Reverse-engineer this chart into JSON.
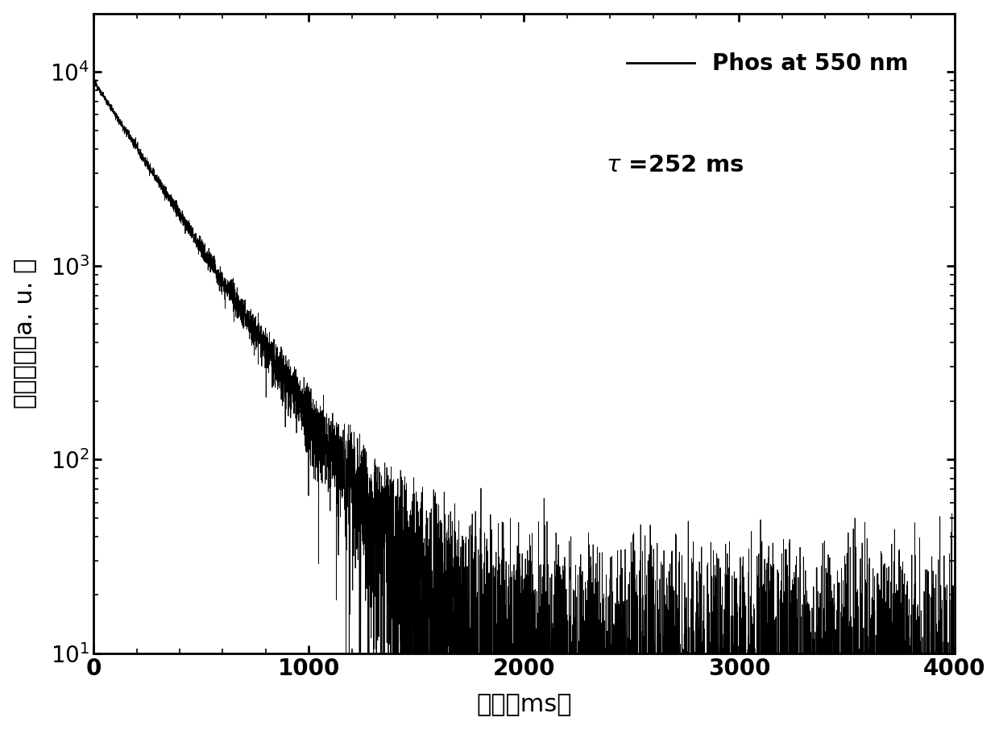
{
  "title": "",
  "xlabel": "时间（ms）",
  "ylabel": "磷光强度（a. u. ）",
  "xmin": 0,
  "xmax": 4000,
  "ymin": 10,
  "ymax": 20000,
  "tau_ms": 252,
  "A0": 9000,
  "legend_line_label": "Phos at 550 nm",
  "legend_tau_label": "τ =252 ms",
  "line_color": "#000000",
  "background_color": "#ffffff",
  "label_fontsize": 22,
  "tick_fontsize": 20,
  "legend_fontsize": 20,
  "xticks": [
    0,
    1000,
    2000,
    3000,
    4000
  ],
  "yticks": [
    10,
    100,
    1000,
    10000
  ]
}
